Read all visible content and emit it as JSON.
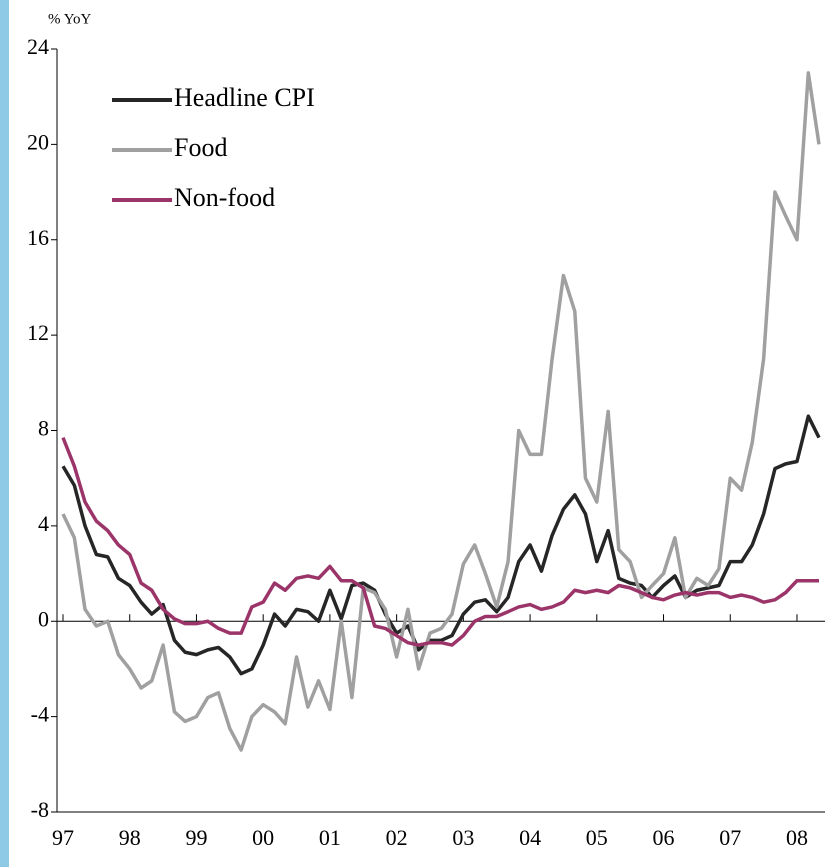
{
  "chart_data": {
    "type": "line",
    "y_label": "% YoY",
    "x": [
      1997.0,
      1997.17,
      1997.33,
      1997.5,
      1997.67,
      1997.83,
      1998.0,
      1998.17,
      1998.33,
      1998.5,
      1998.67,
      1998.83,
      1999.0,
      1999.17,
      1999.33,
      1999.5,
      1999.67,
      1999.83,
      2000.0,
      2000.17,
      2000.33,
      2000.5,
      2000.67,
      2000.83,
      2001.0,
      2001.17,
      2001.33,
      2001.5,
      2001.67,
      2001.83,
      2002.0,
      2002.17,
      2002.33,
      2002.5,
      2002.67,
      2002.83,
      2003.0,
      2003.17,
      2003.33,
      2003.5,
      2003.67,
      2003.83,
      2004.0,
      2004.17,
      2004.33,
      2004.5,
      2004.67,
      2004.83,
      2005.0,
      2005.17,
      2005.33,
      2005.5,
      2005.67,
      2005.83,
      2006.0,
      2006.17,
      2006.33,
      2006.5,
      2006.67,
      2006.83,
      2007.0,
      2007.17,
      2007.33,
      2007.5,
      2007.67,
      2007.83,
      2008.0,
      2008.17,
      2008.33
    ],
    "series": [
      {
        "name": "Headline CPI",
        "color": "#262626",
        "values": [
          6.5,
          5.7,
          4,
          2.8,
          2.7,
          1.8,
          1.5,
          0.8,
          0.3,
          0.7,
          -0.8,
          -1.3,
          -1.4,
          -1.2,
          -1.1,
          -1.5,
          -2.2,
          -2.0,
          -1.0,
          0.3,
          -0.2,
          0.5,
          0.4,
          0,
          1.3,
          0.1,
          1.5,
          1.6,
          1.3,
          0.3,
          -0.5,
          -0.2,
          -1.2,
          -0.8,
          -0.8,
          -0.6,
          0.3,
          0.8,
          0.9,
          0.4,
          1.0,
          2.5,
          3.2,
          2.1,
          3.6,
          4.7,
          5.3,
          4.5,
          2.5,
          3.8,
          1.8,
          1.6,
          1.5,
          1.0,
          1.5,
          1.9,
          1.0,
          1.3,
          1.4,
          1.5,
          2.5,
          2.5,
          3.2,
          4.5,
          6.4,
          6.6,
          6.7,
          8.6,
          7.7
        ]
      },
      {
        "name": "Food",
        "color": "#a0a0a0",
        "values": [
          4.5,
          3.5,
          0.5,
          -0.2,
          0,
          -1.4,
          -2,
          -2.8,
          -2.5,
          -1,
          -3.8,
          -4.2,
          -4.0,
          -3.2,
          -3.0,
          -4.5,
          -5.4,
          -4,
          -3.5,
          -3.8,
          -4.3,
          -1.5,
          -3.6,
          -2.5,
          -3.7,
          0,
          -3.2,
          1.4,
          1.2,
          0.5,
          -1.5,
          0.5,
          -2,
          -0.5,
          -0.3,
          0.3,
          2.4,
          3.2,
          2.0,
          0.6,
          2.5,
          8.0,
          7,
          7,
          11,
          14.5,
          13,
          6,
          5,
          8.8,
          3,
          2.5,
          1.0,
          1.5,
          2.0,
          3.5,
          1,
          1.8,
          1.5,
          2.2,
          6,
          5.5,
          7.5,
          11,
          18,
          17,
          16,
          23,
          20
        ]
      },
      {
        "name": "Non-food",
        "color": "#9b3569",
        "values": [
          7.7,
          6.5,
          5,
          4.2,
          3.8,
          3.2,
          2.8,
          1.6,
          1.3,
          0.5,
          0.1,
          -0.1,
          -0.1,
          0,
          -0.3,
          -0.5,
          -0.5,
          0.6,
          0.8,
          1.6,
          1.3,
          1.8,
          1.9,
          1.8,
          2.3,
          1.7,
          1.7,
          1.4,
          -0.2,
          -0.3,
          -0.6,
          -0.9,
          -1.0,
          -0.9,
          -0.9,
          -1.0,
          -0.6,
          0,
          0.2,
          0.2,
          0.4,
          0.6,
          0.7,
          0.5,
          0.6,
          0.8,
          1.3,
          1.2,
          1.3,
          1.2,
          1.5,
          1.4,
          1.2,
          1.0,
          0.9,
          1.1,
          1.2,
          1.1,
          1.2,
          1.2,
          1.0,
          1.1,
          1.0,
          0.8,
          0.9,
          1.2,
          1.7,
          1.7,
          1.7
        ]
      }
    ],
    "xlim": [
      1996.91,
      2008.42
    ],
    "xticks": [
      {
        "value": 1997,
        "label": "97"
      },
      {
        "value": 1998,
        "label": "98"
      },
      {
        "value": 1999,
        "label": "99"
      },
      {
        "value": 2000,
        "label": "00"
      },
      {
        "value": 2001,
        "label": "01"
      },
      {
        "value": 2002,
        "label": "02"
      },
      {
        "value": 2003,
        "label": "03"
      },
      {
        "value": 2004,
        "label": "04"
      },
      {
        "value": 2005,
        "label": "05"
      },
      {
        "value": 2006,
        "label": "06"
      },
      {
        "value": 2007,
        "label": "07"
      },
      {
        "value": 2008,
        "label": "08"
      }
    ],
    "ylim": [
      -8,
      24
    ],
    "yticks": [
      -8,
      -4,
      0,
      4,
      8,
      12,
      16,
      20,
      24
    ]
  }
}
